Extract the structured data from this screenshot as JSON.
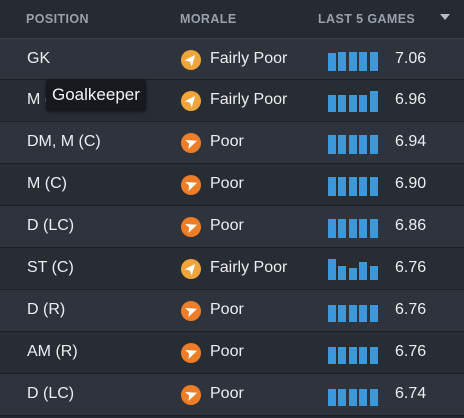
{
  "header": {
    "position_label": "POSITION",
    "morale_label": "MORALE",
    "last5_label": "LAST 5 GAMES",
    "sort_icon": "chevron-down-icon"
  },
  "tooltip": {
    "text": "Goalkeeper"
  },
  "colors": {
    "bar": "#3a98db",
    "morale_fairly_poor": "#f0a53a",
    "morale_poor": "#ed7d27"
  },
  "rows": [
    {
      "position": "GK",
      "morale": "Fairly Poor",
      "morale_level": "fairly",
      "rating": "7.06",
      "last5": [
        6.9,
        7.0,
        7.0,
        7.0,
        7.0
      ]
    },
    {
      "position": "M (RC)",
      "morale": "Fairly Poor",
      "morale_level": "fairly",
      "rating": "6.96",
      "last5": [
        6.8,
        6.8,
        6.8,
        6.8,
        7.1
      ]
    },
    {
      "position": "DM, M (C)",
      "morale": "Poor",
      "morale_level": "poor",
      "rating": "6.94",
      "last5": [
        7.0,
        7.0,
        7.0,
        7.0,
        7.0
      ]
    },
    {
      "position": "M (C)",
      "morale": "Poor",
      "morale_level": "poor",
      "rating": "6.90",
      "last5": [
        7.0,
        7.0,
        7.0,
        7.0,
        7.0
      ]
    },
    {
      "position": "D (LC)",
      "morale": "Poor",
      "morale_level": "poor",
      "rating": "6.86",
      "last5": [
        7.0,
        7.0,
        7.0,
        7.0,
        7.0
      ]
    },
    {
      "position": "ST (C)",
      "morale": "Fairly Poor",
      "morale_level": "fairly",
      "rating": "6.76",
      "last5": [
        7.1,
        6.6,
        6.4,
        6.9,
        6.6
      ]
    },
    {
      "position": "D (R)",
      "morale": "Poor",
      "morale_level": "poor",
      "rating": "6.76",
      "last5": [
        6.8,
        6.8,
        6.8,
        6.8,
        6.8
      ]
    },
    {
      "position": "AM (R)",
      "morale": "Poor",
      "morale_level": "poor",
      "rating": "6.76",
      "last5": [
        6.8,
        6.8,
        6.8,
        6.8,
        6.8
      ]
    },
    {
      "position": "D (LC)",
      "morale": "Poor",
      "morale_level": "poor",
      "rating": "6.74",
      "last5": [
        6.8,
        6.8,
        6.8,
        6.8,
        6.8
      ]
    }
  ]
}
